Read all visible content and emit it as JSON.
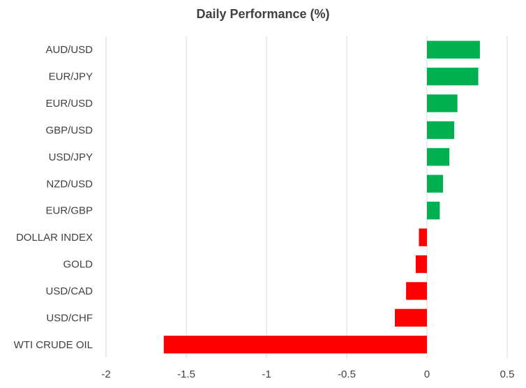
{
  "chart_data": {
    "type": "bar",
    "orientation": "horizontal",
    "title": "Daily Performance  (%)",
    "xlabel": "",
    "ylabel": "",
    "categories": [
      "AUD/USD",
      "EUR/JPY",
      "EUR/USD",
      "GBP/USD",
      "USD/JPY",
      "NZD/USD",
      "EUR/GBP",
      "DOLLAR INDEX",
      "GOLD",
      "USD/CAD",
      "USD/CHF",
      "WTI CRUDE OIL"
    ],
    "values": [
      0.33,
      0.32,
      0.19,
      0.17,
      0.14,
      0.1,
      0.08,
      -0.05,
      -0.07,
      -0.13,
      -0.2,
      -1.64
    ],
    "xlim": [
      -2,
      0.5
    ],
    "xticks": [
      "-2",
      "-1.5",
      "-1",
      "-0.5",
      "0",
      "0.5"
    ],
    "xtick_values": [
      -2,
      -1.5,
      -1,
      -0.5,
      0,
      0.5
    ],
    "grid": "vertical",
    "legend": "none",
    "colors": {
      "positive": "#00b050",
      "negative": "#ff0000",
      "grid": "#d9d9d9",
      "text": "#404040"
    }
  }
}
